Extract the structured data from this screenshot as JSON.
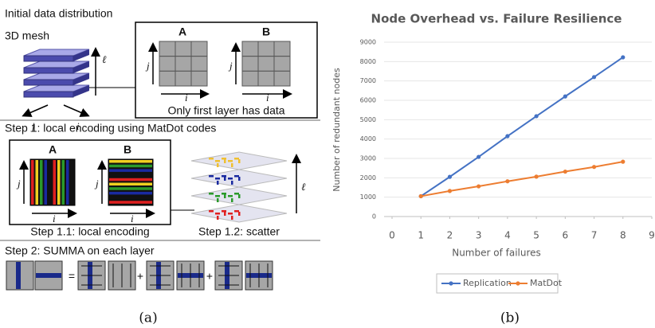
{
  "diagram": {
    "initial_title": "Initial data distribution",
    "mesh_label": "3D mesh",
    "axis_l": "ℓ",
    "axis_i": "i",
    "axis_j": "j",
    "matrix_a": "A",
    "matrix_b": "B",
    "first_layer_note": "Only first layer has data",
    "step1": "Step 1: local encoding using MatDot codes",
    "step1_1": "Step 1.1: local encoding",
    "step1_2": "Step 1.2: scatter",
    "step2": "Step 2: SUMMA on each layer",
    "equals": "=",
    "plus": "+",
    "caption": "(a)"
  },
  "chart_data": {
    "type": "line",
    "title": "Node Overhead vs. Failure Resilience",
    "x_label": "Number of failures",
    "y_label": "Number of redundant nodes",
    "x": [
      1,
      2,
      3,
      4,
      5,
      6,
      7,
      8
    ],
    "series": [
      {
        "name": "Replication",
        "color": "#4472c4",
        "values": [
          1050,
          2050,
          3080,
          4150,
          5180,
          6200,
          7200,
          8220
        ]
      },
      {
        "name": "MatDot",
        "color": "#ed7d31",
        "values": [
          1050,
          1320,
          1560,
          1820,
          2060,
          2320,
          2560,
          2830
        ]
      }
    ],
    "xlim": [
      0,
      9
    ],
    "xticks": [
      0,
      1,
      2,
      3,
      4,
      5,
      6,
      7,
      8,
      9
    ],
    "ylim": [
      0,
      9000
    ],
    "yticks": [
      0,
      1000,
      2000,
      3000,
      4000,
      5000,
      6000,
      7000,
      8000,
      9000
    ],
    "grid": true,
    "markers": true,
    "legend": "bottom",
    "caption": "(b)"
  }
}
